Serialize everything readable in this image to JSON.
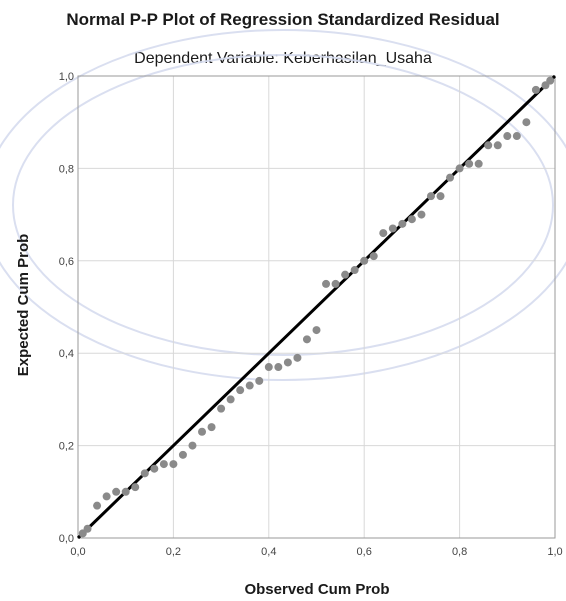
{
  "chart_data": {
    "type": "scatter",
    "title": "Normal P-P Plot of Regression Standardized Residual",
    "subtitle": "Dependent Variable: Keberhasilan_Usaha",
    "xlabel": "Observed Cum Prob",
    "ylabel": "Expected Cum Prob",
    "xlim": [
      0,
      1
    ],
    "ylim": [
      0,
      1
    ],
    "x_ticks": [
      "0,0",
      "0,2",
      "0,4",
      "0,6",
      "0,8",
      "1,0"
    ],
    "y_ticks": [
      "0,0",
      "0,2",
      "0,4",
      "0,6",
      "0,8",
      "1,0"
    ],
    "grid": true,
    "reference_line": [
      [
        0,
        0
      ],
      [
        1,
        1
      ]
    ],
    "points": [
      [
        0.01,
        0.01
      ],
      [
        0.02,
        0.02
      ],
      [
        0.04,
        0.07
      ],
      [
        0.06,
        0.09
      ],
      [
        0.08,
        0.1
      ],
      [
        0.1,
        0.1
      ],
      [
        0.12,
        0.11
      ],
      [
        0.14,
        0.14
      ],
      [
        0.16,
        0.15
      ],
      [
        0.18,
        0.16
      ],
      [
        0.2,
        0.16
      ],
      [
        0.22,
        0.18
      ],
      [
        0.24,
        0.2
      ],
      [
        0.26,
        0.23
      ],
      [
        0.28,
        0.24
      ],
      [
        0.3,
        0.28
      ],
      [
        0.32,
        0.3
      ],
      [
        0.34,
        0.32
      ],
      [
        0.36,
        0.33
      ],
      [
        0.38,
        0.34
      ],
      [
        0.4,
        0.37
      ],
      [
        0.42,
        0.37
      ],
      [
        0.44,
        0.38
      ],
      [
        0.46,
        0.39
      ],
      [
        0.48,
        0.43
      ],
      [
        0.5,
        0.45
      ],
      [
        0.52,
        0.55
      ],
      [
        0.54,
        0.55
      ],
      [
        0.56,
        0.57
      ],
      [
        0.58,
        0.58
      ],
      [
        0.6,
        0.6
      ],
      [
        0.62,
        0.61
      ],
      [
        0.64,
        0.66
      ],
      [
        0.66,
        0.67
      ],
      [
        0.68,
        0.68
      ],
      [
        0.7,
        0.69
      ],
      [
        0.72,
        0.7
      ],
      [
        0.74,
        0.74
      ],
      [
        0.76,
        0.74
      ],
      [
        0.78,
        0.78
      ],
      [
        0.8,
        0.8
      ],
      [
        0.82,
        0.81
      ],
      [
        0.84,
        0.81
      ],
      [
        0.86,
        0.85
      ],
      [
        0.88,
        0.85
      ],
      [
        0.9,
        0.87
      ],
      [
        0.92,
        0.87
      ],
      [
        0.94,
        0.9
      ],
      [
        0.96,
        0.97
      ],
      [
        0.98,
        0.98
      ],
      [
        0.99,
        0.99
      ]
    ],
    "colors": {
      "points": "#8a8a8a",
      "line": "#000000",
      "grid": "#d8d8d8"
    }
  }
}
